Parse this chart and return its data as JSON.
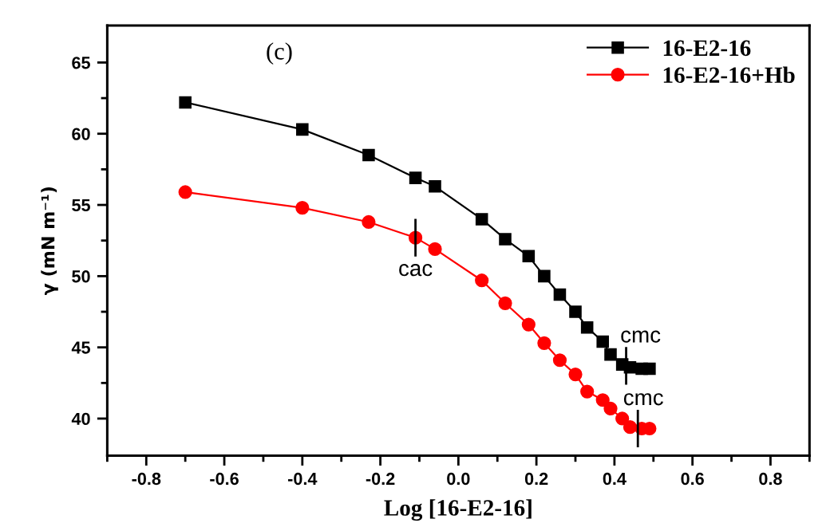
{
  "chart_data": {
    "type": "line",
    "xlabel": "Log [16-E2-16]",
    "ylabel": "γ (mN m⁻¹)",
    "annotations": [
      "(c)",
      {
        "text": "cac",
        "x": -0.11,
        "y": 52.7
      },
      {
        "text": "cmc",
        "x": 0.43,
        "y": 43.7
      },
      {
        "text": "cmc",
        "x": 0.46,
        "y": 39.3
      }
    ],
    "x": [
      -0.7,
      -0.4,
      -0.23,
      -0.11,
      -0.06,
      0.06,
      0.12,
      0.18,
      0.22,
      0.26,
      0.3,
      0.33,
      0.37,
      0.39,
      0.42,
      0.44,
      0.47,
      0.49
    ],
    "series": [
      {
        "name": "16-E2-16",
        "color": "#000000",
        "marker": "square",
        "values": [
          62.2,
          60.3,
          58.5,
          56.9,
          56.3,
          54.0,
          52.6,
          51.4,
          50.0,
          48.7,
          47.5,
          46.4,
          45.4,
          44.5,
          43.8,
          43.6,
          43.5,
          43.5
        ]
      },
      {
        "name": "16-E2-16+Hb",
        "color": "#ff0000",
        "marker": "circle",
        "values": [
          55.9,
          54.8,
          53.8,
          52.7,
          51.9,
          49.7,
          48.1,
          46.6,
          45.3,
          44.1,
          43.1,
          41.9,
          41.3,
          40.7,
          40.0,
          39.4,
          39.3,
          39.3
        ]
      }
    ],
    "xlim": [
      -0.9,
      0.9
    ],
    "ylim": [
      37.4,
      67.6
    ],
    "xticks": [
      {
        "value": -0.9,
        "label": null
      },
      -0.8,
      {
        "value": -0.7,
        "label": null
      },
      -0.6,
      {
        "value": -0.5,
        "label": null
      },
      -0.4,
      {
        "value": -0.3,
        "label": null
      },
      -0.2,
      {
        "value": -0.1,
        "label": null
      },
      {
        "value": 0,
        "label": "0.0"
      },
      {
        "value": 0.1,
        "label": null
      },
      0.2,
      {
        "value": 0.3,
        "label": null
      },
      0.4,
      {
        "value": 0.5,
        "label": null
      },
      0.6,
      {
        "value": 0.7,
        "label": null
      },
      0.8,
      {
        "value": 0.9,
        "label": null
      }
    ],
    "yticks": [
      40,
      {
        "value": 42.5,
        "label": null
      },
      45,
      {
        "value": 47.5,
        "label": null
      },
      50,
      {
        "value": 52.5,
        "label": null
      },
      55,
      {
        "value": 57.5,
        "label": null
      },
      60,
      {
        "value": 62.5,
        "label": null
      },
      65
    ],
    "legend": "top right",
    "line_style": "solid"
  }
}
